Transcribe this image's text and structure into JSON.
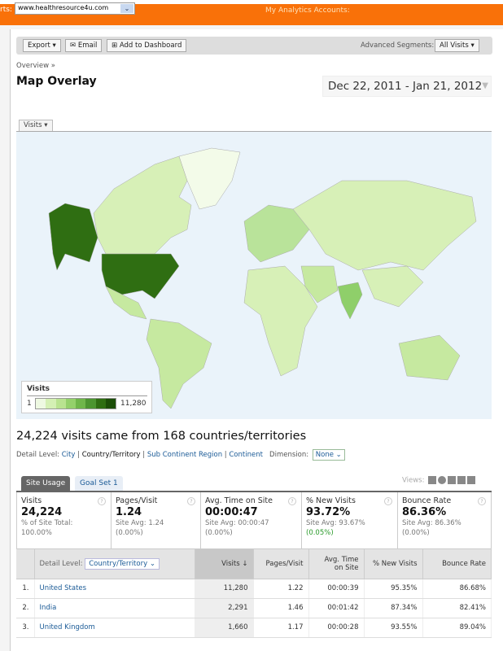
{
  "topbar": {
    "accounts_label": "rts:",
    "selected_account": "www.healthresource4u.com",
    "my_accounts": "My Analytics Accounts:"
  },
  "toolbar": {
    "export": "Export",
    "email": "Email",
    "add_dashboard": "Add to Dashboard",
    "segments_label": "Advanced Segments:",
    "segment_value": "All Visits"
  },
  "breadcrumb": "Overview »",
  "page_title": "Map Overlay",
  "date_range": "Dec 22, 2011 - Jan 21, 2012",
  "map": {
    "metric_tab": "Visits",
    "legend_title": "Visits",
    "legend_min": "1",
    "legend_max": "11,280",
    "colors": {
      "low": "#e6f5cf",
      "high": "#2b6e12",
      "ocean": "#eaf3fa"
    }
  },
  "summary": "24,224 visits came from 168 countries/territories",
  "detail_level": {
    "label": "Detail Level:",
    "options": [
      "City",
      "Country/Territory",
      "Sub Continent Region",
      "Continent"
    ],
    "selected": "Country/Territory",
    "dimension_label": "Dimension:",
    "dimension_value": "None"
  },
  "tabs": [
    {
      "label": "Site Usage",
      "active": true
    },
    {
      "label": "Goal Set 1",
      "active": false
    }
  ],
  "views_label": "Views:",
  "metrics": [
    {
      "name": "Visits",
      "value": "24,224",
      "sub1": "% of Site Total:",
      "sub2": "100.00%"
    },
    {
      "name": "Pages/Visit",
      "value": "1.24",
      "sub1": "Site Avg: 1.24",
      "sub2": "(0.00%)"
    },
    {
      "name": "Avg. Time on Site",
      "value": "00:00:47",
      "sub1": "Site Avg: 00:00:47",
      "sub2": "(0.00%)"
    },
    {
      "name": "% New Visits",
      "value": "93.72%",
      "sub1": "Site Avg: 93.67%",
      "sub2": "(0.05%)"
    },
    {
      "name": "Bounce Rate",
      "value": "86.36%",
      "sub1": "Site Avg: 86.36%",
      "sub2": "(0.00%)"
    }
  ],
  "table": {
    "detail_label": "Detail Level:",
    "detail_value": "Country/Territory",
    "headers": [
      "Visits ↓",
      "Pages/Visit",
      "Avg. Time on Site",
      "% New Visits",
      "Bounce Rate"
    ],
    "rows": [
      {
        "rank": "1.",
        "country": "United States",
        "visits": "11,280",
        "ppv": "1.22",
        "time": "00:00:39",
        "new": "95.35%",
        "bounce": "86.68%"
      },
      {
        "rank": "2.",
        "country": "India",
        "visits": "2,291",
        "ppv": "1.46",
        "time": "00:01:42",
        "new": "87.34%",
        "bounce": "82.41%"
      },
      {
        "rank": "3.",
        "country": "United Kingdom",
        "visits": "1,660",
        "ppv": "1.17",
        "time": "00:00:28",
        "new": "93.55%",
        "bounce": "89.04%"
      }
    ]
  }
}
